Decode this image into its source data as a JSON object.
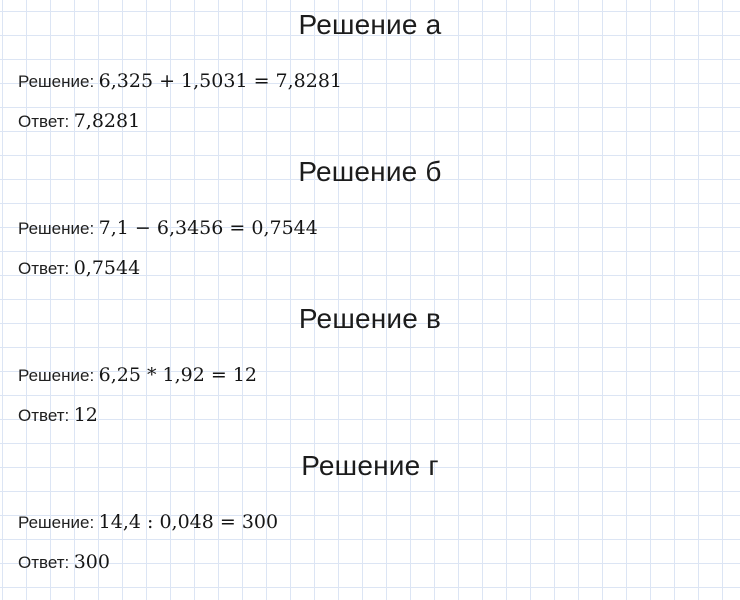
{
  "theme": {
    "background_color": "#ffffff",
    "grid_color": "#dce5f4",
    "heading_color": "#1c1c1c",
    "label_color": "#202020",
    "math_color": "#151515"
  },
  "sections": [
    {
      "heading": "Решение а",
      "solution_label": "Решение:",
      "solution_expression": "6,325 + 1,5031 = 7,8281",
      "answer_label": "Ответ:",
      "answer_value": "7,8281"
    },
    {
      "heading": "Решение б",
      "solution_label": "Решение:",
      "solution_expression": "7,1 − 6,3456 = 0,7544",
      "answer_label": "Ответ:",
      "answer_value": "0,7544"
    },
    {
      "heading": "Решение в",
      "solution_label": "Решение:",
      "solution_expression": "6,25 * 1,92 = 12",
      "answer_label": "Ответ:",
      "answer_value": "12"
    },
    {
      "heading": "Решение г",
      "solution_label": "Решение:",
      "solution_expression": "14,4 : 0,048 = 300",
      "answer_label": "Ответ:",
      "answer_value": "300"
    }
  ]
}
